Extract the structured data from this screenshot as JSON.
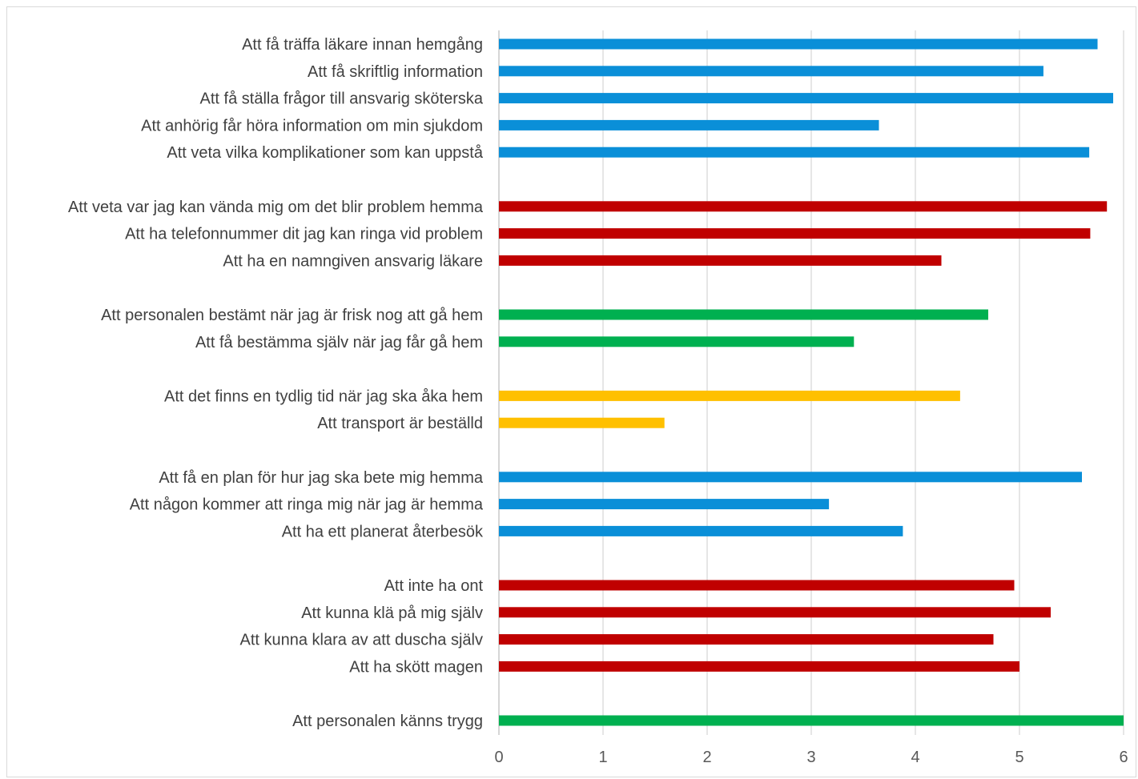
{
  "chart_data": {
    "type": "bar",
    "orientation": "horizontal",
    "title": "",
    "xlabel": "",
    "ylabel": "",
    "xlim": [
      0,
      6
    ],
    "xticks": [
      "0",
      "1",
      "2",
      "3",
      "4",
      "5",
      "6"
    ],
    "grid": "vertical",
    "legend": "none",
    "groups": [
      {
        "color": "#0a8fd8",
        "bars": [
          {
            "label": "Att få träffa läkare innan hemgång",
            "value": 5.75
          },
          {
            "label": "Att få skriftlig information",
            "value": 5.23
          },
          {
            "label": "Att få ställa frågor till ansvarig sköterska",
            "value": 5.9
          },
          {
            "label": "Att anhörig får höra information om min sjukdom",
            "value": 3.65
          },
          {
            "label": "Att veta vilka komplikationer som kan uppstå",
            "value": 5.67
          }
        ]
      },
      {
        "color": "#c00000",
        "bars": [
          {
            "label": "Att veta var jag kan vända mig om det blir problem hemma",
            "value": 5.84
          },
          {
            "label": "Att ha telefonnummer dit jag kan ringa vid problem",
            "value": 5.68
          },
          {
            "label": "Att ha en namngiven ansvarig läkare",
            "value": 4.25
          }
        ]
      },
      {
        "color": "#00b050",
        "bars": [
          {
            "label": "Att personalen bestämt när jag är frisk nog att gå hem",
            "value": 4.7
          },
          {
            "label": "Att få bestämma själv när jag får gå hem",
            "value": 3.41
          }
        ]
      },
      {
        "color": "#ffc000",
        "bars": [
          {
            "label": "Att det finns en tydlig tid när jag ska åka hem",
            "value": 4.43
          },
          {
            "label": "Att transport är beställd",
            "value": 1.59
          }
        ]
      },
      {
        "color": "#0a8fd8",
        "bars": [
          {
            "label": "Att få en plan för hur jag ska bete mig hemma",
            "value": 5.6
          },
          {
            "label": "Att någon kommer att ringa mig när jag är hemma",
            "value": 3.17
          },
          {
            "label": "Att ha ett planerat återbesök",
            "value": 3.88
          }
        ]
      },
      {
        "color": "#c00000",
        "bars": [
          {
            "label": "Att inte ha ont",
            "value": 4.95
          },
          {
            "label": "Att kunna klä på mig själv",
            "value": 5.3
          },
          {
            "label": "Att kunna klara av att duscha själv",
            "value": 4.75
          },
          {
            "label": "Att ha skött magen",
            "value": 5.0
          }
        ]
      },
      {
        "color": "#00b050",
        "bars": [
          {
            "label": "Att personalen känns trygg",
            "value": 6.0
          }
        ]
      }
    ]
  }
}
